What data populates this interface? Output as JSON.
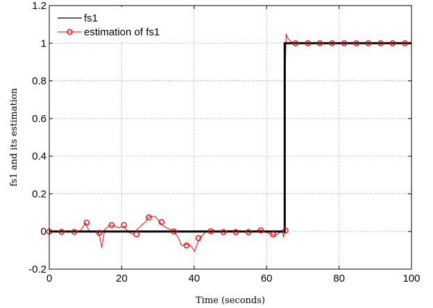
{
  "chart_data": {
    "type": "line",
    "title": "",
    "xlabel": "Time (seconds)",
    "ylabel": "fs1 and its estimation",
    "xlim": [
      0,
      100
    ],
    "ylim": [
      -0.2,
      1.2
    ],
    "xticks": [
      0,
      20,
      40,
      60,
      80,
      100
    ],
    "yticks": [
      -0.2,
      0,
      0.2,
      0.4,
      0.6,
      0.8,
      1,
      1.2
    ],
    "xtick_labels": [
      "0",
      "20",
      "40",
      "60",
      "80",
      "100"
    ],
    "ytick_labels": [
      "-0.2",
      "0",
      "0.2",
      "0.4",
      "0.6",
      "0.8",
      "1",
      "1.2"
    ],
    "grid": true,
    "legend_position": "top-left",
    "series": [
      {
        "name": "fs1",
        "color": "#000000",
        "x": [
          0,
          65,
          65,
          100
        ],
        "y": [
          0,
          0,
          1,
          1
        ]
      },
      {
        "name": "estimation of fs1",
        "color": "#ff0000",
        "marker": "circle",
        "x": [
          0,
          1.5,
          3.4,
          5.2,
          6.9,
          8.6,
          10.1,
          10.5,
          11.5,
          12.3,
          13.7,
          14.5,
          15.3,
          16.5,
          17.1,
          18.5,
          19.3,
          20.6,
          21.5,
          22.5,
          23.3,
          24.2,
          25.3,
          26.5,
          27.3,
          28.3,
          29.3,
          30.5,
          31.5,
          32.3,
          33.5,
          34.7,
          35.8,
          36.5,
          37.6,
          38.5,
          39.3,
          40.1,
          40.8,
          41.5,
          42.3,
          43.5,
          44.6,
          45.5,
          46.5,
          47.6,
          48.5,
          49.5,
          50.8,
          51.5,
          52.5,
          53.6,
          54.5,
          55.3,
          56.5,
          57.8,
          58.5,
          59.5,
          60.5,
          61.4,
          62.3,
          63.3,
          64.3,
          64.7,
          65.0,
          65.2,
          65.4,
          65.7,
          66.1,
          66.6,
          67.3,
          68.0,
          69.5,
          71.4,
          74.7,
          78.1,
          81.4,
          84.8,
          88.1,
          91.5,
          94.8,
          98.2,
          100
        ],
        "y": [
          0,
          0,
          0,
          -0.002,
          0,
          0.005,
          0.047,
          0.02,
          -0.005,
          -0.002,
          -0.007,
          -0.085,
          0.01,
          0.03,
          0.034,
          0.025,
          0.02,
          0.03,
          0.005,
          -0.01,
          -0.015,
          0.01,
          0.03,
          0.05,
          0.075,
          0.08,
          0.08,
          0.05,
          0.03,
          0.02,
          0.01,
          -0.005,
          -0.04,
          -0.074,
          -0.07,
          -0.07,
          -0.08,
          -0.105,
          -0.07,
          -0.035,
          -0.02,
          0.005,
          0.002,
          0.005,
          0,
          0,
          -0.005,
          0.005,
          0.005,
          0.005,
          0.003,
          0,
          0.002,
          0,
          0.002,
          0.007,
          0.006,
          0,
          -0.01,
          -0.015,
          -0.02,
          -0.01,
          0,
          -0.03,
          0.005,
          0.9,
          1.05,
          1.03,
          1.02,
          1.01,
          1.005,
          1.0,
          1.0,
          1.0,
          1.0,
          1.0,
          1.0,
          1.0,
          1.0,
          1.0,
          1.0,
          1.0,
          1.0
        ],
        "marker_x": [
          0,
          3.4,
          6.9,
          10.3,
          13.8,
          17.2,
          20.6,
          24.1,
          27.5,
          31.0,
          34.4,
          37.9,
          41.2,
          44.6,
          48.1,
          51.5,
          55.0,
          58.4,
          61.8,
          65.2,
          68.0,
          71.4,
          74.7,
          78.1,
          81.4,
          84.8,
          88.1,
          91.5,
          94.8,
          98.2
        ],
        "marker_y": [
          0,
          -0.002,
          -0.002,
          0.047,
          -0.007,
          0.034,
          0.034,
          -0.015,
          0.075,
          0.05,
          0,
          -0.074,
          -0.035,
          0.002,
          -0.003,
          -0.003,
          -0.003,
          0.006,
          -0.015,
          0.005,
          1.0,
          1.0,
          1.0,
          1.0,
          1.0,
          1.0,
          1.0,
          1.0,
          1.0,
          1.0
        ]
      }
    ]
  }
}
